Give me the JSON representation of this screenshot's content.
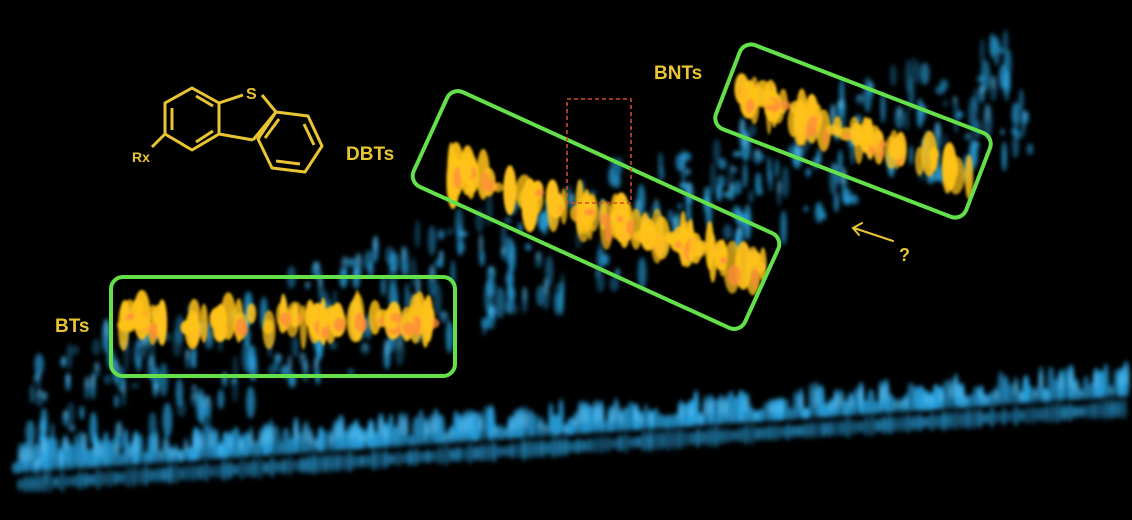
{
  "image": {
    "background": "#000000",
    "colors": {
      "box_outline": "#63e04a",
      "label_text": "#e8c531",
      "blue_signal": "#2aa8e8",
      "blue_highlight": "#7fd8ff",
      "yellow_peak": "#ffc21a",
      "orange_peak": "#ff8a3a",
      "dashed_region": "#d24b2a"
    },
    "labels": {
      "bts": "BTs",
      "dbts": "DBTs",
      "bnts": "BNTs",
      "unknown": "?",
      "substituent": "Rx",
      "sulfur": "S"
    },
    "groups": [
      "BTs",
      "DBTs",
      "BNTs"
    ],
    "molecule_icon": "dibenzothiophene-structure-icon",
    "arrow_icon": "arrow-pointing-left-icon"
  }
}
